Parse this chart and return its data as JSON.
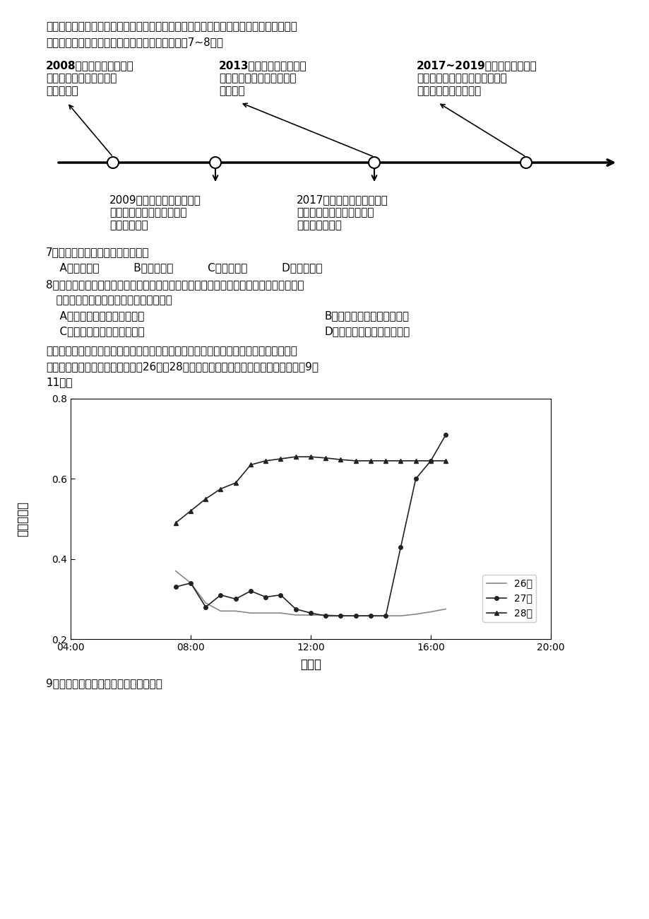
{
  "page_bg": "#ffffff",
  "text_color": "#000000",
  "intro_text_line1": "突出个性化设计，可靠性要求极高。盾构机已逐渐成为地铁、隧道、地下管廊等主流施工",
  "intro_text_line2": "设备。下图示意中国盾构机的发展过程。据此完成7~8题。",
  "tl_top1_line1": "2008年以前，国内盾构机",
  "tl_top1_line2": "严重依赖进口，应用上处",
  "tl_top1_line3": "处受制于人",
  "tl_top2_line1": "2013年，中国中铁盾构机",
  "tl_top2_line2": "出口马来西亚，收购德国维",
  "tl_top2_line3": "尔特公司",
  "tl_top3_line1": "2017~2019年中国中铁连续三",
  "tl_top3_line2": "年销量世界第一，成为世界知名",
  "tl_top3_line3": "的中国盾构行业领生者",
  "tl_bot1_line1": "2009年开始，以中国铁建和",
  "tl_bot1_line2": "中国中铁为主开始了盾构机",
  "tl_bot1_line3": "的攻坚之路。",
  "tl_bot2_line1": "2017年，工信部提出加强盾",
  "tl_bot2_line2": "构机整机及关键件再制造技",
  "tl_bot2_line3": "术的推广应用。",
  "q7_line1": "7．盾构机的个性化主要考虑各地的",
  "q7_opts": "    A．气象条件          B．地质条件          C．资源类型          D．水文特征",
  "q8_line1": "8．对接近或超过使用寿命的盾构机进行再制造，可以使其重新应用到施工当中。造成目前",
  "q8_line2": "   我国盾构机再制造成本高昂的主要原因是",
  "q8_A": "    A．市场需求少，利润空间小",
  "q8_B": "B．所需劳力多，工资成本高",
  "q8_C": "    C．部件类型多，标准不统一",
  "q8_D": "D．专业分包多，原料消耗大",
  "intro2_line1": "　　地表反照率表征地面对太阳辐射的吸收和反射能力。古尔班通古特沙漠位于新疆北部",
  "intro2_line2": "的准噶尔盆地，下图为该沙漠某月26日～28日降雪前后地表反照率日变化图。据此完成9～",
  "intro2_line3": "11题。",
  "xlabel": "地方时",
  "ylabel_chars": [
    "地",
    "表",
    "反",
    "照",
    "率"
  ],
  "xlim_hours": [
    4,
    20
  ],
  "xtick_labels": [
    "04:00",
    "08:00",
    "12:00",
    "16:00",
    "20:00"
  ],
  "xtick_positions": [
    4,
    8,
    12,
    16,
    20
  ],
  "ylim": [
    0.2,
    0.8
  ],
  "ytick_labels": [
    "0.2",
    "0.4",
    "0.6",
    "0.8"
  ],
  "ytick_positions": [
    0.2,
    0.4,
    0.6,
    0.8
  ],
  "line26_x": [
    7.5,
    8.0,
    8.5,
    9.0,
    9.5,
    10.0,
    10.5,
    11.0,
    11.5,
    12.0,
    12.5,
    13.0,
    13.5,
    14.0,
    14.5,
    15.0,
    15.5,
    16.0,
    16.5
  ],
  "line26_y": [
    0.37,
    0.34,
    0.29,
    0.27,
    0.27,
    0.265,
    0.265,
    0.265,
    0.26,
    0.26,
    0.26,
    0.258,
    0.258,
    0.258,
    0.258,
    0.258,
    0.262,
    0.268,
    0.275
  ],
  "line27_x": [
    7.5,
    8.0,
    8.5,
    9.0,
    9.5,
    10.0,
    10.5,
    11.0,
    11.5,
    12.0,
    12.5,
    13.0,
    13.5,
    14.0,
    14.5,
    15.0,
    15.5,
    16.0,
    16.5
  ],
  "line27_y": [
    0.33,
    0.34,
    0.28,
    0.31,
    0.3,
    0.32,
    0.305,
    0.31,
    0.275,
    0.265,
    0.258,
    0.258,
    0.258,
    0.258,
    0.258,
    0.43,
    0.6,
    0.645,
    0.71
  ],
  "line28_x": [
    7.5,
    8.0,
    8.5,
    9.0,
    9.5,
    10.0,
    10.5,
    11.0,
    11.5,
    12.0,
    12.5,
    13.0,
    13.5,
    14.0,
    14.5,
    15.0,
    15.5,
    16.0,
    16.5
  ],
  "line28_y": [
    0.49,
    0.52,
    0.55,
    0.575,
    0.59,
    0.635,
    0.645,
    0.65,
    0.655,
    0.655,
    0.652,
    0.648,
    0.645,
    0.645,
    0.645,
    0.645,
    0.645,
    0.645,
    0.645
  ],
  "legend26": "26日",
  "legend27": "27日",
  "legend28": "28日",
  "color26": "#888888",
  "color27": "#222222",
  "color28": "#222222",
  "q9_text": "9．古尔班通古特沙漠出现降雪最可能在"
}
